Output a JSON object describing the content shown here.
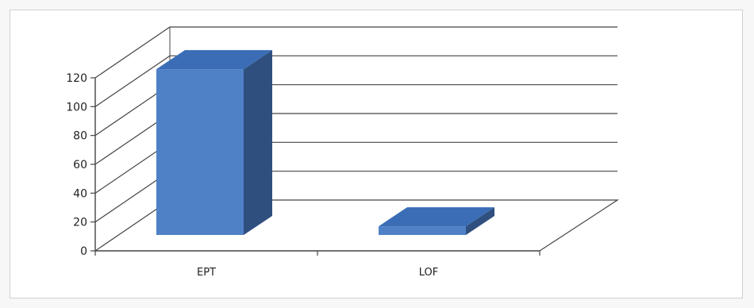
{
  "chart_data": {
    "type": "bar",
    "style": "3d-column",
    "title": "",
    "xlabel": "",
    "ylabel": "",
    "categories": [
      "EPT",
      "LOF"
    ],
    "series": [
      {
        "values": [
          115,
          6
        ]
      }
    ],
    "yticks": [
      0,
      20,
      40,
      60,
      80,
      100,
      120
    ],
    "ylim": [
      0,
      120
    ],
    "grid": true,
    "legend": "none",
    "colors": {
      "bar_front": "#4f81c7",
      "bar_top": "#3a6db5",
      "bar_side": "#2f4f7f",
      "grid": "#444444"
    }
  }
}
